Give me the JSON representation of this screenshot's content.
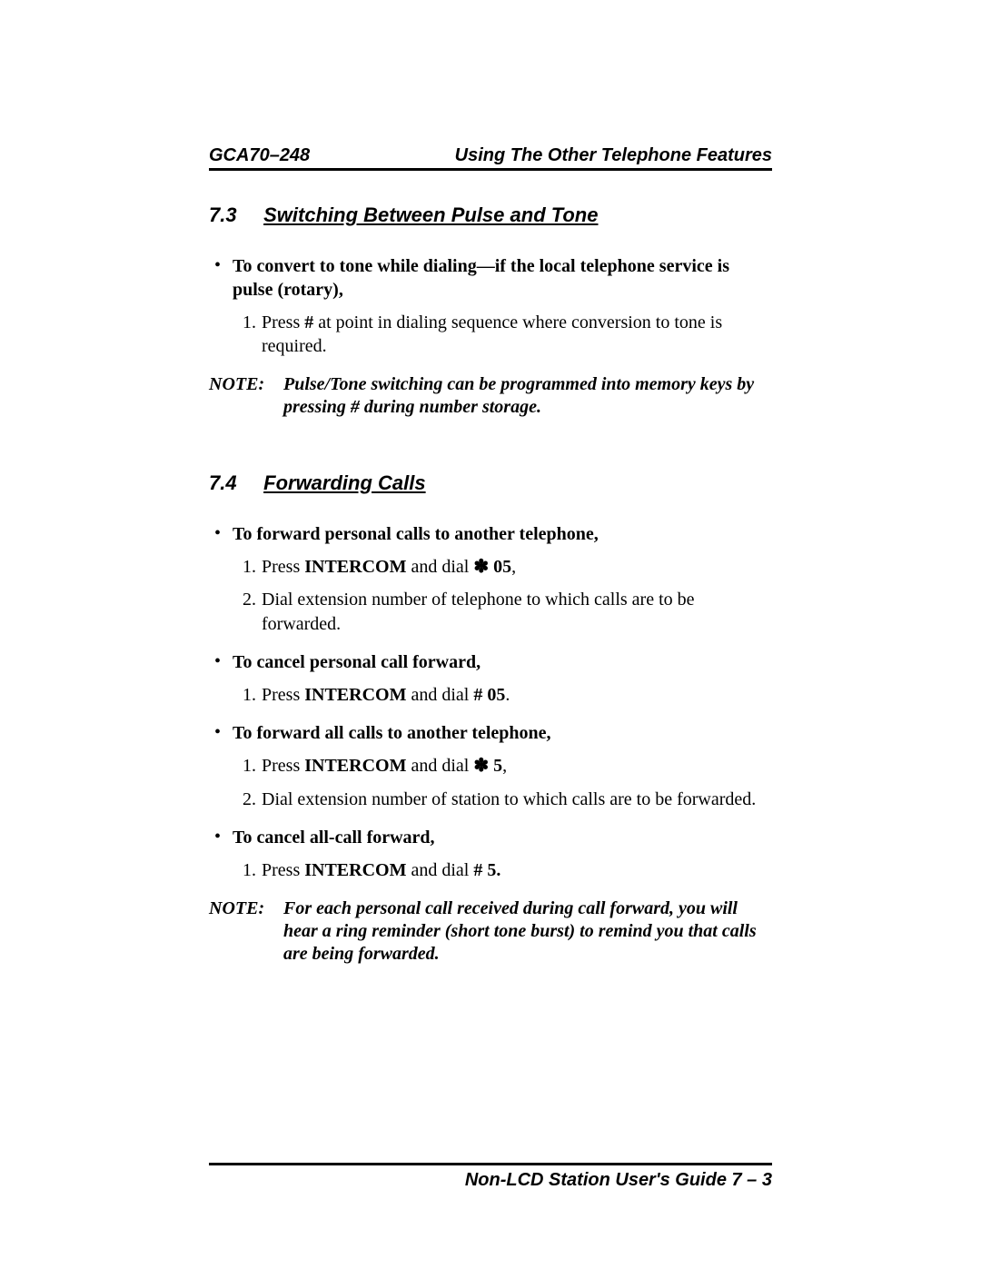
{
  "header": {
    "left": "GCA70–248",
    "right": "Using The Other Telephone Features"
  },
  "sections": [
    {
      "num": "7.3",
      "title": "Switching Between Pulse and Tone",
      "bullets": [
        {
          "prefix": "To convert to tone while dialing—if the local telephone service is pulse (rotary),",
          "steps": [
            {
              "n": "1.",
              "before": "Press ",
              "bold": "#",
              "after": " at point in dialing sequence where conversion to tone is required."
            }
          ]
        }
      ],
      "note": "Pulse/Tone switching can be programmed into memory keys by pressing # during number storage."
    },
    {
      "num": "7.4",
      "title": "Forwarding Calls",
      "bullets": [
        {
          "prefix": "To forward personal calls to another telephone,",
          "steps": [
            {
              "n": "1.",
              "before": "Press ",
              "bold": "INTERCOM",
              "after": " and dial ",
              "bold2": "✽ 05",
              "after2": ","
            },
            {
              "n": "2.",
              "before": "Dial extension number of telephone to which calls are to be forwarded."
            }
          ]
        },
        {
          "prefix": "To cancel personal call forward,",
          "steps": [
            {
              "n": "1.",
              "before": "Press ",
              "bold": "INTERCOM",
              "after": " and dial ",
              "bold2": "# 05",
              "after2": "."
            }
          ]
        },
        {
          "prefix": "To forward all calls to another telephone,",
          "steps": [
            {
              "n": "1.",
              "before": "Press ",
              "bold": "INTERCOM",
              "after": " and dial ",
              "bold2": "✽ 5",
              "after2": ","
            },
            {
              "n": "2.",
              "before": "Dial extension number of station to which calls are to be forwarded."
            }
          ]
        },
        {
          "prefix": "To cancel all-call forward,",
          "steps": [
            {
              "n": "1.",
              "before": "Press ",
              "bold": "INTERCOM",
              "after": " and dial ",
              "bold2": "# 5."
            }
          ]
        }
      ],
      "note": "For each personal call received during call forward, you will hear a ring reminder (short tone burst) to remind you that calls are being forwarded."
    }
  ],
  "footer": "Non-LCD Station User's Guide  7 – 3",
  "noteLabel": "NOTE:"
}
